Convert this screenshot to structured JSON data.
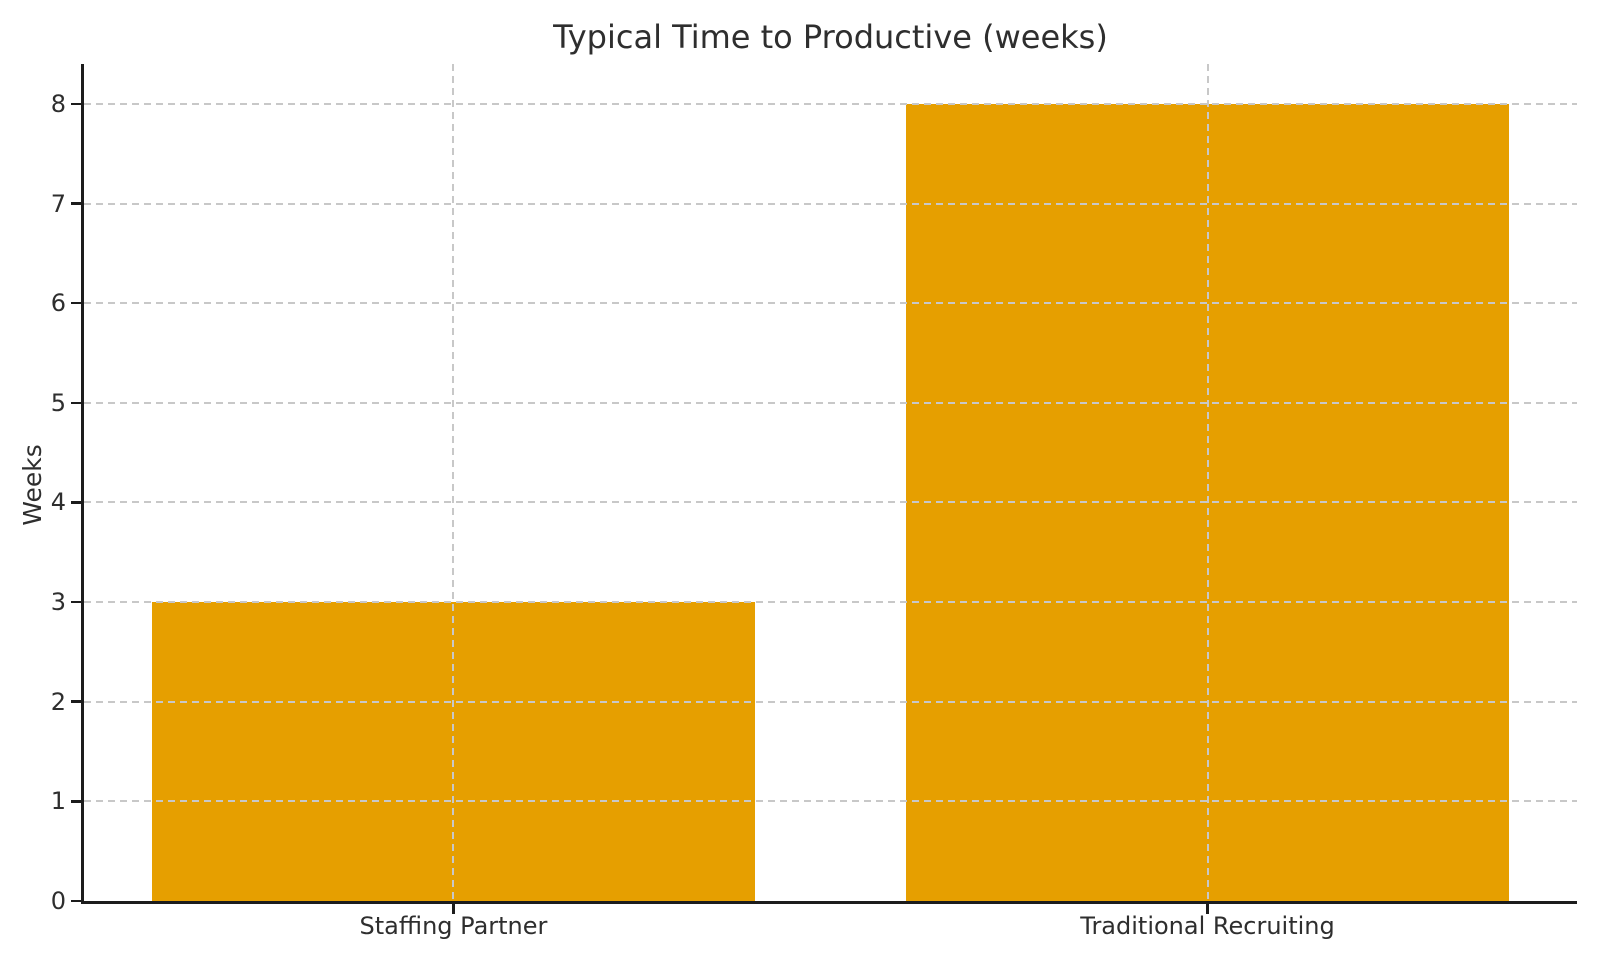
{
  "chart_data": {
    "type": "bar",
    "title": "Typical Time to Productive (weeks)",
    "xlabel": "",
    "ylabel": "Weeks",
    "categories": [
      "Staffing Partner",
      "Traditional Recruiting"
    ],
    "values": [
      3,
      8
    ],
    "yticks": [
      "0",
      "1",
      "2",
      "3",
      "4",
      "5",
      "6",
      "7",
      "8"
    ],
    "ytick_values": [
      0,
      1,
      2,
      3,
      4,
      5,
      6,
      7,
      8
    ],
    "ylim": [
      0,
      8.4
    ],
    "xlim": [
      -0.49,
      1.49
    ],
    "bar_width": 0.8,
    "bar_color": "#E69F00",
    "grid": {
      "horizontal": true,
      "vertical": true,
      "style": "dashed",
      "color": "#c8c8c8",
      "above_bars": true
    },
    "axis_color": "#1c1c1c",
    "text_color": "#2e2e2e",
    "background_color": "#ffffff",
    "legend": "none",
    "spines": [
      "left",
      "bottom"
    ]
  }
}
